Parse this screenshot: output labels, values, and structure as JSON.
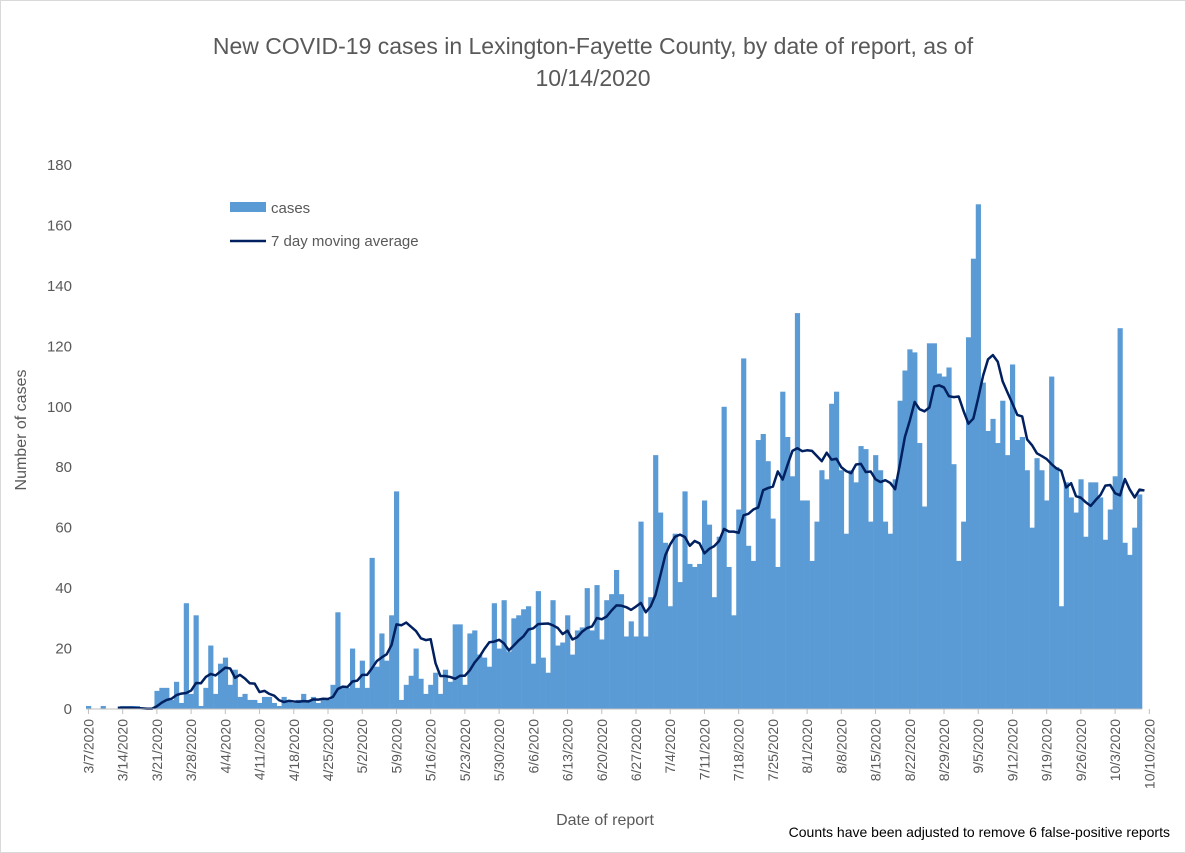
{
  "chart_data": {
    "type": "bar",
    "title_line1": "New COVID-19 cases in Lexington-Fayette County, by date of report, as of",
    "title_line2": "10/14/2020",
    "xlabel": "Date of report",
    "ylabel": "Number of cases",
    "note": "Counts have been adjusted to remove 6 false-positive reports",
    "ylim": [
      0,
      180
    ],
    "yticks": [
      "0",
      "20",
      "40",
      "60",
      "80",
      "100",
      "120",
      "140",
      "160",
      "180"
    ],
    "xticks": [
      "3/7/2020",
      "3/14/2020",
      "3/21/2020",
      "3/28/2020",
      "4/4/2020",
      "4/11/2020",
      "4/18/2020",
      "4/25/2020",
      "5/2/2020",
      "5/9/2020",
      "5/16/2020",
      "5/23/2020",
      "5/30/2020",
      "6/6/2020",
      "6/13/2020",
      "6/20/2020",
      "6/27/2020",
      "7/4/2020",
      "7/11/2020",
      "7/18/2020",
      "7/25/2020",
      "8/1/2020",
      "8/8/2020",
      "8/15/2020",
      "8/22/2020",
      "8/29/2020",
      "9/5/2020",
      "9/12/2020",
      "9/19/2020",
      "9/26/2020",
      "10/3/2020",
      "10/10/2020"
    ],
    "legend_position": "top-left",
    "grid": false,
    "x_start": "3/7/2020",
    "x_end": "10/14/2020",
    "series": [
      {
        "name": "cases",
        "kind": "bar",
        "color": "#5b9bd5",
        "values": [
          1,
          0,
          0,
          1,
          0,
          0,
          0,
          1,
          1,
          1,
          1,
          0,
          0,
          0,
          6,
          7,
          7,
          3,
          9,
          2,
          35,
          5,
          31,
          1,
          7,
          21,
          5,
          15,
          17,
          8,
          13,
          4,
          5,
          3,
          3,
          2,
          4,
          4,
          2,
          1,
          4,
          3,
          2,
          3,
          5,
          3,
          4,
          2,
          3,
          3,
          8,
          32,
          7,
          7,
          20,
          7,
          16,
          7,
          50,
          14,
          25,
          16,
          31,
          72,
          3,
          8,
          11,
          20,
          10,
          5,
          8,
          12,
          5,
          13,
          9,
          28,
          28,
          8,
          25,
          26,
          18,
          17,
          14,
          35,
          20,
          36,
          19,
          30,
          31,
          33,
          34,
          15,
          39,
          17,
          12,
          36,
          21,
          22,
          31,
          18,
          26,
          27,
          40,
          26,
          41,
          23,
          36,
          38,
          46,
          38,
          24,
          29,
          24,
          62,
          24,
          37,
          84,
          65,
          55,
          34,
          58,
          42,
          72,
          48,
          47,
          48,
          69,
          61,
          37,
          57,
          100,
          47,
          31,
          66,
          116,
          54,
          49,
          89,
          91,
          82,
          63,
          47,
          105,
          90,
          77,
          131,
          69,
          69,
          49,
          62,
          79,
          76,
          101,
          105,
          79,
          58,
          79,
          75,
          87,
          86,
          62,
          84,
          79,
          62,
          58,
          76,
          102,
          112,
          119,
          118,
          88,
          67,
          121,
          121,
          111,
          110,
          113,
          81,
          49,
          62,
          123,
          149,
          167,
          108,
          92,
          96,
          88,
          102,
          84,
          114,
          89,
          90,
          79,
          60,
          83,
          79,
          69,
          110,
          80,
          34,
          75,
          70,
          65,
          76,
          57,
          75,
          75,
          70,
          56,
          66,
          77,
          126,
          55,
          51,
          60,
          71
        ]
      },
      {
        "name": "7 day moving average",
        "kind": "line",
        "color": "#002060",
        "values": [
          null,
          null,
          null,
          null,
          null,
          null,
          0.4,
          0.4,
          0.4,
          0.4,
          0.3,
          0.2,
          0.1,
          0.1,
          0.9,
          2.1,
          3.0,
          3.4,
          4.6,
          5.1,
          5.3,
          6.1,
          8.6,
          8.5,
          10.6,
          11.6,
          11.1,
          12.4,
          13.7,
          13.4,
          10.3,
          11.3,
          10.1,
          8.5,
          8.4,
          5.6,
          6.0,
          5.0,
          4.4,
          2.9,
          2.3,
          2.7,
          2.5,
          2.4,
          2.6,
          2.5,
          3.2,
          3.1,
          3.4,
          3.3,
          4.0,
          6.6,
          7.4,
          7.3,
          9.1,
          9.4,
          11.3,
          11.3,
          13.5,
          15.9,
          17.1,
          18.1,
          21.2,
          28.0,
          27.7,
          28.6,
          27.2,
          25.8,
          23.4,
          22.8,
          23.1,
          15.1,
          10.9,
          10.9,
          10.6,
          10.0,
          11.0,
          11.0,
          12.8,
          15.4,
          17.3,
          19.9,
          22.1,
          22.3,
          22.9,
          21.7,
          19.4,
          21.0,
          22.7,
          24.1,
          26.3,
          26.7,
          28.1,
          28.2,
          28.3,
          27.7,
          26.8,
          24.8,
          25.9,
          23.0,
          23.8,
          25.6,
          26.8,
          27.3,
          30.1,
          29.7,
          30.6,
          32.6,
          34.3,
          34.2,
          33.7,
          32.8,
          33.9,
          35.1,
          32.0,
          34.0,
          37.8,
          44.3,
          50.9,
          54.5,
          57.0,
          57.7,
          56.9,
          54.0,
          55.6,
          54.8,
          51.5,
          53.0,
          53.9,
          55.6,
          59.6,
          58.7,
          58.7,
          58.3,
          64.1,
          64.6,
          66.0,
          66.7,
          72.4,
          73.1,
          73.6,
          78.6,
          75.9,
          80.8,
          85.4,
          86.3,
          85.3,
          85.6,
          85.4,
          83.7,
          82.0,
          84.8,
          82.5,
          82.8,
          80.0,
          78.7,
          78.0,
          80.9,
          81.1,
          78.4,
          78.6,
          76.0,
          75.1,
          75.7,
          74.8,
          72.7,
          81.1,
          90.0,
          95.4,
          101.6,
          99.2,
          98.5,
          99.7,
          106.7,
          107.1,
          106.4,
          103.5,
          103.2,
          103.4,
          98.6,
          94.4,
          96.1,
          102.9,
          110.3,
          115.7,
          117.1,
          114.9,
          108.4,
          104.7,
          101.1,
          97.3,
          96.8,
          89.2,
          87.3,
          84.6,
          83.7,
          82.7,
          81.0,
          79.6,
          78.8,
          73.3,
          74.7,
          70.4,
          69.9,
          68.4,
          67.2,
          69.1,
          70.8,
          73.9,
          74.1,
          71.4,
          70.7,
          76.1,
          72.6,
          70.0,
          72.6,
          72.3
        ]
      }
    ]
  }
}
